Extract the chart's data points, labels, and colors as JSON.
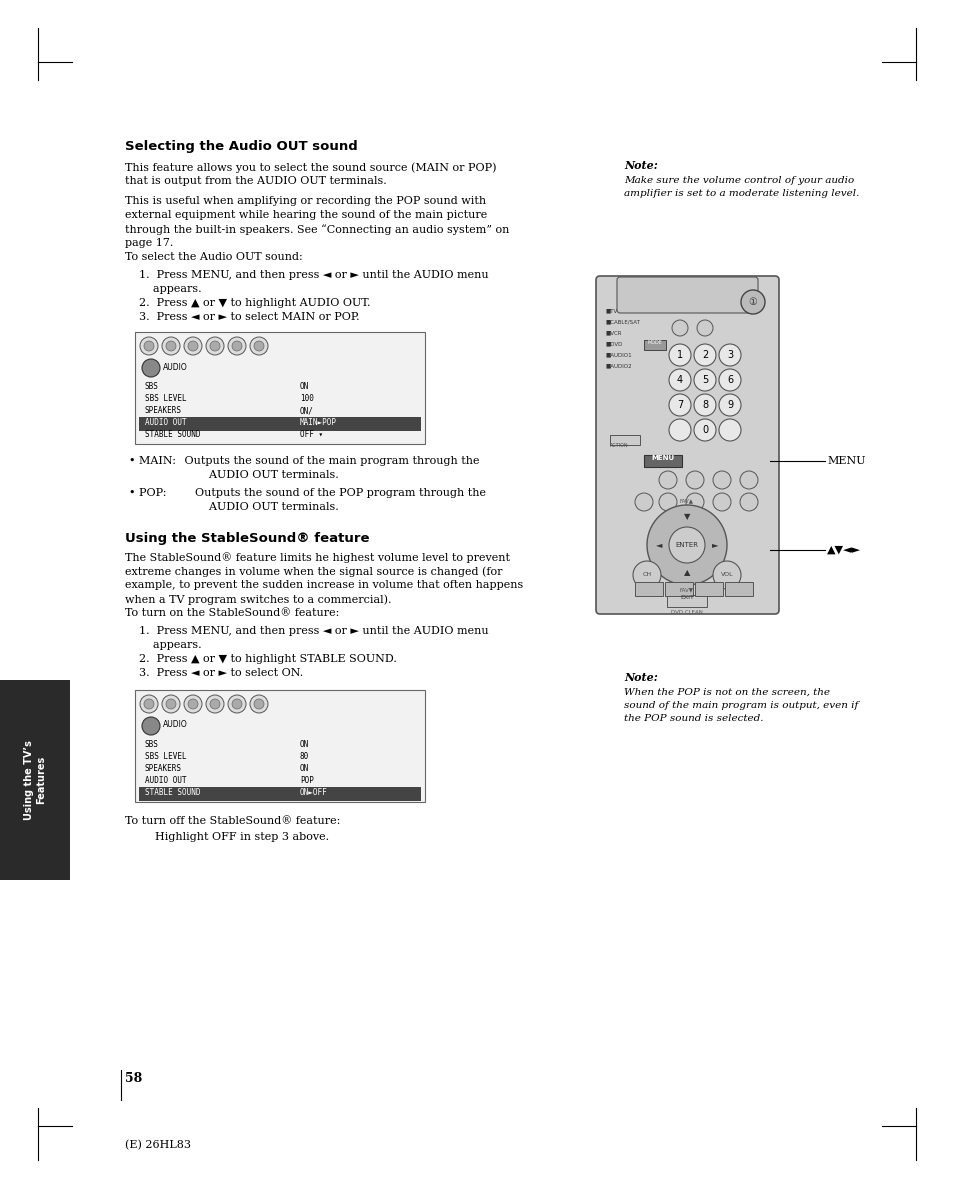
{
  "page_bg": "#ffffff",
  "text_color": "#000000",
  "page_width": 9.54,
  "page_height": 11.88,
  "page_number": "58",
  "footer_text": "(E) 26HL83",
  "section1_title": "Selecting the Audio OUT sound",
  "note1_title": "Note:",
  "note1_body": [
    "Make sure the volume control of your audio",
    "amplifier is set to a moderate listening level."
  ],
  "note2_title": "Note:",
  "note2_body": [
    "When the POP is not on the screen, the",
    "sound of the main program is output, even if",
    "the POP sound is selected."
  ],
  "section2_title": "Using the StableSound® feature",
  "turn_off_text1": "To turn off the StableSound® feature:",
  "turn_off_text2": "    Highlight OFF in step 3 above.",
  "sidebar_text": "Using the TV’s\nFeatures",
  "sidebar_bg": "#2a2a2a",
  "sidebar_text_color": "#ffffff",
  "menu_label": "MENU",
  "arrow_label": "▲▼◄►",
  "ml": 0.132,
  "nr": 0.655,
  "dpi": 100
}
